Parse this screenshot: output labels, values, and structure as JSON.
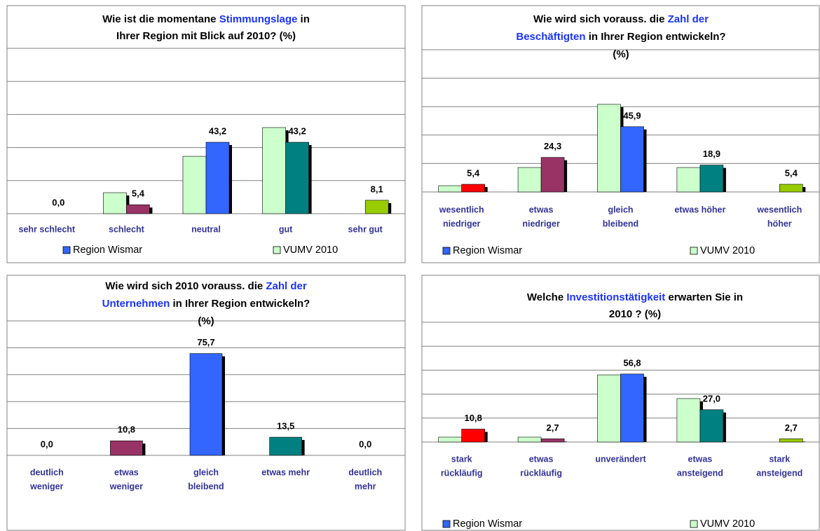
{
  "chart_data": [
    {
      "type": "bar",
      "title": [
        [
          "Wie ist die momentane ",
          "Stimmungslage",
          " in"
        ],
        [
          "Ihrer Region mit Blick auf 2010? (%)"
        ]
      ],
      "categories": [
        [
          "sehr schlecht"
        ],
        [
          "schlecht"
        ],
        [
          "neutral"
        ],
        [
          "gut"
        ],
        [
          "sehr gut"
        ]
      ],
      "series": [
        {
          "name": "VUMV 2010",
          "color": "#ccffcc",
          "values": [
            0,
            12.7,
            34.7,
            52.1,
            0
          ]
        },
        {
          "name": "Region Wismar",
          "color": "#3366ff",
          "colors": [
            "#ff0000",
            "#993366",
            "#3366ff",
            "#008080",
            "#99cc00"
          ],
          "values": [
            0.0,
            5.4,
            43.2,
            43.2,
            8.1
          ],
          "value_labels": [
            "0,0",
            "5,4",
            "43,2",
            "43,2",
            "8,1"
          ]
        }
      ],
      "ylim": [
        0,
        100
      ],
      "yticks": [
        0,
        20,
        40,
        60,
        80,
        100
      ],
      "grid": true,
      "legend": "bottom"
    },
    {
      "type": "bar",
      "title": [
        [
          "Wie wird sich vorauss. die ",
          "Zahl der"
        ],
        [
          "",
          "Beschäftigten",
          " in Ihrer Region entwickeln?"
        ],
        [
          "(%)"
        ]
      ],
      "categories": [
        [
          "wesentlich",
          "niedriger"
        ],
        [
          "etwas",
          "niedriger"
        ],
        [
          "gleich",
          "bleibend"
        ],
        [
          "etwas höher"
        ],
        [
          "wesentlich",
          "höher"
        ]
      ],
      "series": [
        {
          "name": "VUMV 2010",
          "color": "#ccffcc",
          "values": [
            4.4,
            17.2,
            61.6,
            17.2,
            0
          ]
        },
        {
          "name": "Region Wismar",
          "color": "#3366ff",
          "colors": [
            "#ff0000",
            "#993366",
            "#3366ff",
            "#008080",
            "#99cc00"
          ],
          "values": [
            5.4,
            24.3,
            45.9,
            18.9,
            5.4
          ],
          "value_labels": [
            "5,4",
            "24,3",
            "45,9",
            "18,9",
            "5,4"
          ]
        }
      ],
      "ylim": [
        0,
        100
      ],
      "yticks": [
        0,
        20,
        40,
        60,
        80,
        100
      ],
      "grid": true,
      "legend": "bottom"
    },
    {
      "type": "bar",
      "title": [
        [
          "Wie wird sich 2010 vorauss. die ",
          "Zahl der"
        ],
        [
          "",
          "Unternehmen",
          " in Ihrer Region entwickeln?"
        ],
        [
          "(%)"
        ]
      ],
      "categories": [
        [
          "deutlich",
          "weniger"
        ],
        [
          "etwas",
          "weniger"
        ],
        [
          "gleich",
          "bleibend"
        ],
        [
          "etwas mehr"
        ],
        [
          "deutlich",
          "mehr"
        ]
      ],
      "series": [
        {
          "name": "Region Wismar",
          "color": "#3366ff",
          "colors": [
            "#ff0000",
            "#993366",
            "#3366ff",
            "#008080",
            "#99cc00"
          ],
          "values": [
            0.0,
            10.8,
            75.7,
            13.5,
            0.0
          ],
          "value_labels": [
            "0,0",
            "10,8",
            "75,7",
            "13,5",
            "0,0"
          ]
        }
      ],
      "ylim": [
        0,
        100
      ],
      "yticks": [
        0,
        20,
        40,
        60,
        80,
        100
      ],
      "grid": true
    },
    {
      "type": "bar",
      "title": [
        [
          "Welche ",
          "Investitionstätigkeit",
          " erwarten Sie in"
        ],
        [
          "2010 ? (%)"
        ]
      ],
      "categories": [
        [
          "stark",
          "rückläufig"
        ],
        [
          "etwas",
          "rückläufig"
        ],
        [
          "unverändert"
        ],
        [
          "etwas",
          "ansteigend"
        ],
        [
          "stark",
          "ansteigend"
        ]
      ],
      "series": [
        {
          "name": "VUMV 2010",
          "color": "#ccffcc",
          "values": [
            4.1,
            4.1,
            56.1,
            36.3,
            0
          ]
        },
        {
          "name": "Region Wismar",
          "color": "#3366ff",
          "colors": [
            "#ff0000",
            "#993366",
            "#3366ff",
            "#008080",
            "#99cc00"
          ],
          "values": [
            10.8,
            2.7,
            56.8,
            27.0,
            2.7
          ],
          "value_labels": [
            "10,8",
            "2,7",
            "56,8",
            "27,0",
            "2,7"
          ]
        }
      ],
      "ylim": [
        0,
        100
      ],
      "yticks": [
        0,
        20,
        40,
        60,
        80,
        100
      ],
      "grid": true,
      "legend": "bottom"
    }
  ]
}
